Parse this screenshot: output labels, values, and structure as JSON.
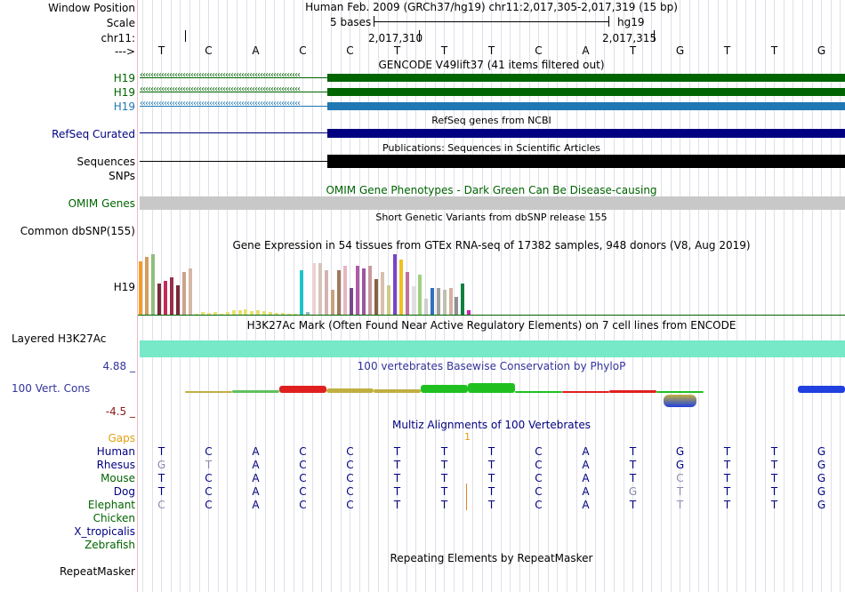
{
  "header": {
    "window_position_label": "Window Position",
    "scale_label": "Scale",
    "chrom_label": "chr11:",
    "arrow_label": "--->",
    "assembly_text": "Human Feb. 2009 (GRCh37/hg19)   chr11:2,017,305-2,017,319 (15 bp)",
    "scale_text": "5 bases",
    "db_text": "hg19",
    "pos1": "2,017,310",
    "pos2": "2,017,315"
  },
  "bases": [
    "T",
    "C",
    "A",
    "C",
    "C",
    "T",
    "T",
    "T",
    "C",
    "A",
    "T",
    "G",
    "T",
    "T",
    "G"
  ],
  "tracks": {
    "gencode": {
      "title": "GENCODE V49lift37 (41 items filtered out)",
      "labels": [
        "H19",
        "H19",
        "H19"
      ],
      "label_colors": [
        "#006400",
        "#006400",
        "#1f77b4"
      ]
    },
    "refseq": {
      "title": "RefSeq genes from NCBI",
      "label": "RefSeq Curated"
    },
    "publications": {
      "title": "Publications: Sequences in Scientific Articles",
      "label": "Sequences"
    },
    "snps": {
      "label": "SNPs"
    },
    "omim": {
      "title": "OMIM Gene Phenotypes - Dark Green Can Be Disease-causing",
      "label": "OMIM Genes"
    },
    "dbsnp": {
      "title": "Short Genetic Variants from dbSNP release 155",
      "label": "Common dbSNP(155)"
    },
    "gtex": {
      "title": "Gene Expression in 54 tissues from GTEx RNA-seq of 17382 samples, 948 donors (V8, Aug 2019)",
      "label": "H19"
    },
    "h3k27ac": {
      "title": "H3K27Ac Mark (Often Found Near Active Regulatory Elements) on 7 cell lines from ENCODE",
      "label": "Layered H3K27Ac"
    },
    "conservation": {
      "title": "100 vertebrates Basewise Conservation by PhyloP",
      "label": "100 Vert. Cons",
      "max": "4.88 _",
      "min": "-4.5 _"
    },
    "multiz": {
      "title": "Multiz Alignments of 100 Vertebrates",
      "gaps_label": "Gaps",
      "gap_count": "1"
    },
    "repeatmasker": {
      "title": "Repeating Elements by RepeatMasker",
      "label": "RepeatMasker"
    }
  },
  "chart_data": {
    "type": "bar",
    "title": "Gene Expression in 54 tissues from GTEx RNA-seq of 17382 samples, 948 donors (V8, Aug 2019)",
    "values": [
      60,
      65,
      68,
      35,
      38,
      42,
      33,
      48,
      52,
      1,
      3,
      2,
      3,
      1,
      3,
      5,
      5,
      6,
      4,
      5,
      4,
      3,
      2,
      2,
      1,
      1,
      50,
      3,
      58,
      58,
      50,
      28,
      50,
      55,
      30,
      55,
      52,
      55,
      40,
      48,
      33,
      68,
      62,
      48,
      32,
      45,
      18,
      30,
      30,
      28,
      30,
      20,
      35,
      5
    ],
    "colors": [
      "#f39c2b",
      "#d59c5c",
      "#8fbf7f",
      "#7b2a3b",
      "#c12b5a",
      "#962f4a",
      "#7b2a3b",
      "#cba38a",
      "#d4b8a6",
      "#e8e070",
      "#e8e070",
      "#e8e070",
      "#e8e070",
      "#e8e070",
      "#e8e070",
      "#e8e070",
      "#e8e070",
      "#e8e070",
      "#e8e070",
      "#e8e070",
      "#e8e070",
      "#e8e070",
      "#e8e070",
      "#e8e070",
      "#e8e070",
      "#e8e070",
      "#21c3c9",
      "#8bb8d0",
      "#f0d0d0",
      "#d7c4bc",
      "#d4b4b0",
      "#c9a080",
      "#a07a5c",
      "#e8b6c0",
      "#7a4a8a",
      "#b05aa6",
      "#9b56a0",
      "#c79aa0",
      "#8a6040",
      "#d7c0ac",
      "#d0cc88",
      "#7a44c8",
      "#f0c020",
      "#c070a0",
      "#e0e0e0",
      "#a0d080",
      "#cfcfcf",
      "#3070c0",
      "#a0a0a0",
      "#c0c0b0",
      "#d4b0a0",
      "#909090",
      "#108040",
      "#d020c0"
    ],
    "ylim": [
      0,
      70
    ]
  },
  "multiz_rows": [
    {
      "name": "Human",
      "color": "#000080",
      "seq": [
        "T",
        "C",
        "A",
        "C",
        "C",
        "T",
        "T",
        "T",
        "C",
        "A",
        "T",
        "G",
        "T",
        "T",
        "G"
      ],
      "dim": []
    },
    {
      "name": "Rhesus",
      "color": "#000080",
      "seq": [
        "G",
        "T",
        "A",
        "C",
        "C",
        "T",
        "T",
        "T",
        "C",
        "A",
        "T",
        "G",
        "T",
        "T",
        "G"
      ],
      "dim": [
        0,
        1
      ]
    },
    {
      "name": "Mouse",
      "color": "#006400",
      "seq": [
        "T",
        "C",
        "A",
        "C",
        "C",
        "T",
        "T",
        "T",
        "C",
        "A",
        "T",
        "C",
        "T",
        "T",
        "G"
      ],
      "dim": [
        11
      ]
    },
    {
      "name": "Dog",
      "color": "#000080",
      "seq": [
        "T",
        "C",
        "A",
        "C",
        "C",
        "T",
        "T",
        "T",
        "C",
        "A",
        "G",
        "T",
        "T",
        "T",
        "G"
      ],
      "dim": [
        10,
        11
      ]
    },
    {
      "name": "Elephant",
      "color": "#006400",
      "seq": [
        "C",
        "C",
        "A",
        "C",
        "C",
        "T",
        "T",
        "T",
        "C",
        "A",
        "T",
        "T",
        "T",
        "T",
        "G"
      ],
      "dim": [
        0,
        11
      ]
    },
    {
      "name": "Chicken",
      "color": "#006400",
      "seq": [],
      "dim": []
    },
    {
      "name": "X_tropicalis",
      "color": "#000080",
      "seq": [],
      "dim": []
    },
    {
      "name": "Zebrafish",
      "color": "#006400",
      "seq": [],
      "dim": []
    }
  ],
  "colors": {
    "gencode_green": "#006400",
    "gencode_blue": "#1f77b4",
    "refseq": "#000080",
    "omim_bar": "#c8c8c8",
    "h3k27ac_bar": "#77e8c8",
    "conservation_blue": "#33339a"
  }
}
